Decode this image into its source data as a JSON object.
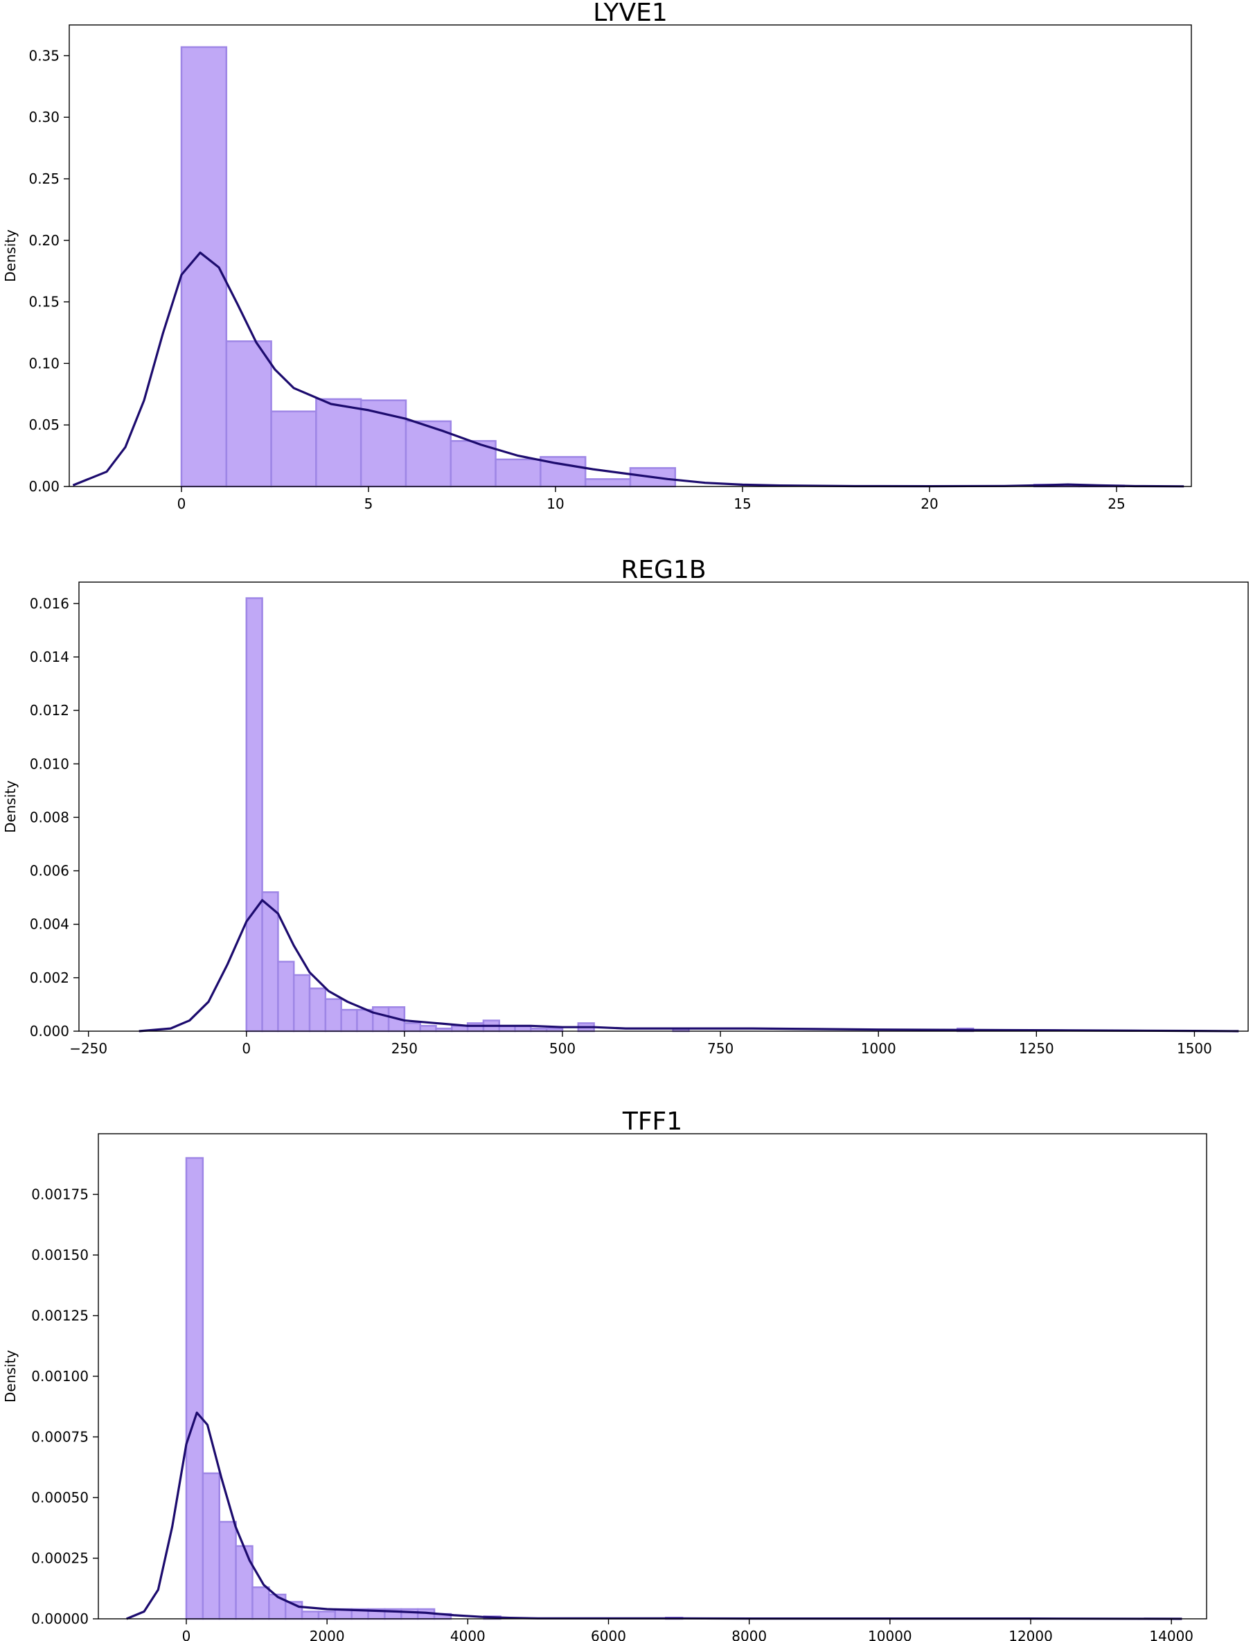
{
  "colors": {
    "bar_fill": "#c0a8f6",
    "bar_edge": "#9e86e6",
    "kde_line": "#1c0b6e"
  },
  "chart_data": [
    {
      "type": "bar",
      "subtype": "histogram-with-kde",
      "title": "LYVE1",
      "ylabel": "Density",
      "xlim": [
        -3,
        27
      ],
      "ylim": [
        0,
        0.375
      ],
      "xticks": [
        0,
        5,
        10,
        15,
        20,
        25
      ],
      "xtick_labels": [
        "0",
        "5",
        "10",
        "15",
        "20",
        "25"
      ],
      "yticks": [
        0,
        0.05,
        0.1,
        0.15,
        0.2,
        0.25,
        0.3,
        0.35
      ],
      "ytick_labels": [
        "0.00",
        "0.05",
        "0.10",
        "0.15",
        "0.20",
        "0.25",
        "0.30",
        "0.35"
      ],
      "grid": false,
      "bins": [
        {
          "x0": 0.0,
          "x1": 1.2,
          "density": 0.357
        },
        {
          "x0": 1.2,
          "x1": 2.4,
          "density": 0.118
        },
        {
          "x0": 2.4,
          "x1": 3.6,
          "density": 0.061
        },
        {
          "x0": 3.6,
          "x1": 4.8,
          "density": 0.071
        },
        {
          "x0": 4.8,
          "x1": 6.0,
          "density": 0.07
        },
        {
          "x0": 6.0,
          "x1": 7.2,
          "density": 0.053
        },
        {
          "x0": 7.2,
          "x1": 8.4,
          "density": 0.037
        },
        {
          "x0": 8.4,
          "x1": 9.6,
          "density": 0.022
        },
        {
          "x0": 9.6,
          "x1": 10.8,
          "density": 0.024
        },
        {
          "x0": 10.8,
          "x1": 12.0,
          "density": 0.006
        },
        {
          "x0": 12.0,
          "x1": 13.2,
          "density": 0.015
        },
        {
          "x0": 13.2,
          "x1": 14.4,
          "density": 0.0
        },
        {
          "x0": 22.8,
          "x1": 24.0,
          "density": 0.0015
        },
        {
          "x0": 24.0,
          "x1": 25.2,
          "density": 0.0008
        }
      ],
      "kde": {
        "x": [
          -2.9,
          -2.0,
          -1.5,
          -1.0,
          -0.5,
          0.0,
          0.5,
          1.0,
          1.5,
          2.0,
          2.5,
          3.0,
          4.0,
          5.0,
          6.0,
          7.0,
          8.0,
          9.0,
          10.0,
          11.0,
          12.0,
          13.0,
          14.0,
          15.0,
          16.0,
          18.0,
          20.0,
          22.0,
          23.0,
          23.7,
          24.5,
          25.5,
          26.8
        ],
        "y": [
          0.001,
          0.012,
          0.032,
          0.07,
          0.124,
          0.172,
          0.19,
          0.178,
          0.148,
          0.117,
          0.095,
          0.08,
          0.067,
          0.062,
          0.055,
          0.045,
          0.034,
          0.025,
          0.019,
          0.014,
          0.01,
          0.006,
          0.003,
          0.0015,
          0.0008,
          0.0003,
          0.0002,
          0.0004,
          0.001,
          0.0016,
          0.0009,
          0.0003,
          0.0001
        ]
      }
    },
    {
      "type": "bar",
      "subtype": "histogram-with-kde",
      "title": "REG1B",
      "ylabel": "Density",
      "xlim": [
        -265,
        1585
      ],
      "ylim": [
        0,
        0.0168
      ],
      "xticks": [
        -250,
        0,
        250,
        500,
        750,
        1000,
        1250,
        1500
      ],
      "xtick_labels": [
        "−250",
        "0",
        "250",
        "500",
        "750",
        "1000",
        "1250",
        "1500"
      ],
      "yticks": [
        0,
        0.002,
        0.004,
        0.006,
        0.008,
        0.01,
        0.012,
        0.014,
        0.016
      ],
      "ytick_labels": [
        "0.000",
        "0.002",
        "0.004",
        "0.006",
        "0.008",
        "0.010",
        "0.012",
        "0.014",
        "0.016"
      ],
      "grid": false,
      "bins": [
        {
          "x0": 0,
          "x1": 25,
          "density": 0.0162
        },
        {
          "x0": 25,
          "x1": 50,
          "density": 0.0052
        },
        {
          "x0": 50,
          "x1": 75,
          "density": 0.0026
        },
        {
          "x0": 75,
          "x1": 100,
          "density": 0.0021
        },
        {
          "x0": 100,
          "x1": 125,
          "density": 0.0016
        },
        {
          "x0": 125,
          "x1": 150,
          "density": 0.0012
        },
        {
          "x0": 150,
          "x1": 175,
          "density": 0.0008
        },
        {
          "x0": 175,
          "x1": 200,
          "density": 0.0008
        },
        {
          "x0": 200,
          "x1": 225,
          "density": 0.0009
        },
        {
          "x0": 225,
          "x1": 250,
          "density": 0.0009
        },
        {
          "x0": 250,
          "x1": 275,
          "density": 0.0003
        },
        {
          "x0": 275,
          "x1": 300,
          "density": 0.0002
        },
        {
          "x0": 300,
          "x1": 325,
          "density": 0.0001
        },
        {
          "x0": 325,
          "x1": 350,
          "density": 0.0002
        },
        {
          "x0": 350,
          "x1": 375,
          "density": 0.0003
        },
        {
          "x0": 375,
          "x1": 400,
          "density": 0.0004
        },
        {
          "x0": 400,
          "x1": 425,
          "density": 0.0002
        },
        {
          "x0": 425,
          "x1": 450,
          "density": 0.0002
        },
        {
          "x0": 450,
          "x1": 475,
          "density": 0.0001
        },
        {
          "x0": 475,
          "x1": 500,
          "density": 0.0001
        },
        {
          "x0": 525,
          "x1": 550,
          "density": 0.0003
        },
        {
          "x0": 675,
          "x1": 700,
          "density": 0.0001
        },
        {
          "x0": 1125,
          "x1": 1150,
          "density": 0.0001
        }
      ],
      "kde": {
        "x": [
          -170,
          -120,
          -90,
          -60,
          -30,
          0,
          25,
          50,
          75,
          100,
          130,
          160,
          200,
          250,
          300,
          350,
          400,
          450,
          500,
          550,
          600,
          700,
          800,
          900,
          1000,
          1100,
          1200,
          1300,
          1400,
          1500,
          1570
        ],
        "y": [
          0.0,
          0.0001,
          0.0004,
          0.0011,
          0.0025,
          0.0041,
          0.0049,
          0.0044,
          0.0032,
          0.0022,
          0.0015,
          0.0011,
          0.0007,
          0.0004,
          0.0003,
          0.0002,
          0.0002,
          0.0002,
          0.00015,
          0.00015,
          0.0001,
          0.0001,
          0.0001,
          8e-05,
          6e-05,
          5e-05,
          4e-05,
          3e-05,
          2e-05,
          1e-05,
          0.0
        ]
      }
    },
    {
      "type": "bar",
      "subtype": "histogram-with-kde",
      "title": "TFF1",
      "ylabel": "Density",
      "xlim": [
        -1250,
        14500
      ],
      "ylim": [
        0,
        0.002
      ],
      "xticks": [
        0,
        2000,
        4000,
        6000,
        8000,
        10000,
        12000,
        14000
      ],
      "xtick_labels": [
        "0",
        "2000",
        "4000",
        "6000",
        "8000",
        "10000",
        "12000",
        "14000"
      ],
      "yticks": [
        0,
        0.00025,
        0.0005,
        0.00075,
        0.001,
        0.00125,
        0.0015,
        0.00175
      ],
      "ytick_labels": [
        "0.00000",
        "0.00025",
        "0.00050",
        "0.00075",
        "0.00100",
        "0.00125",
        "0.00150",
        "0.00175"
      ],
      "grid": false,
      "bins": [
        {
          "x0": 0,
          "x1": 235,
          "density": 0.0019
        },
        {
          "x0": 235,
          "x1": 470,
          "density": 0.0006
        },
        {
          "x0": 470,
          "x1": 705,
          "density": 0.0004
        },
        {
          "x0": 705,
          "x1": 940,
          "density": 0.0003
        },
        {
          "x0": 940,
          "x1": 1175,
          "density": 0.00013
        },
        {
          "x0": 1175,
          "x1": 1410,
          "density": 0.0001
        },
        {
          "x0": 1410,
          "x1": 1645,
          "density": 7e-05
        },
        {
          "x0": 1645,
          "x1": 1880,
          "density": 3e-05
        },
        {
          "x0": 1880,
          "x1": 2115,
          "density": 3e-05
        },
        {
          "x0": 2115,
          "x1": 2350,
          "density": 4e-05
        },
        {
          "x0": 2350,
          "x1": 2585,
          "density": 4e-05
        },
        {
          "x0": 2585,
          "x1": 2820,
          "density": 4e-05
        },
        {
          "x0": 2820,
          "x1": 3055,
          "density": 4e-05
        },
        {
          "x0": 3055,
          "x1": 3290,
          "density": 4e-05
        },
        {
          "x0": 3290,
          "x1": 3525,
          "density": 4e-05
        },
        {
          "x0": 3525,
          "x1": 3760,
          "density": 2e-05
        },
        {
          "x0": 4230,
          "x1": 4465,
          "density": 1e-05
        },
        {
          "x0": 6815,
          "x1": 7050,
          "density": 5e-06
        }
      ],
      "kde": {
        "x": [
          -850,
          -600,
          -400,
          -200,
          0,
          150,
          300,
          500,
          700,
          900,
          1100,
          1300,
          1600,
          2000,
          2500,
          3000,
          3400,
          3800,
          4200,
          4600,
          5000,
          6000,
          7000,
          8000,
          10000,
          12000,
          14150
        ],
        "y": [
          0.0,
          3e-05,
          0.00012,
          0.00038,
          0.00072,
          0.00085,
          0.0008,
          0.00058,
          0.00038,
          0.00024,
          0.00014,
          9e-05,
          5e-05,
          4e-05,
          3.5e-05,
          3e-05,
          2.5e-05,
          1.5e-05,
          8e-06,
          4e-06,
          2e-06,
          2e-06,
          2e-06,
          1e-06,
          1e-06,
          1e-06,
          0.0
        ]
      }
    }
  ]
}
